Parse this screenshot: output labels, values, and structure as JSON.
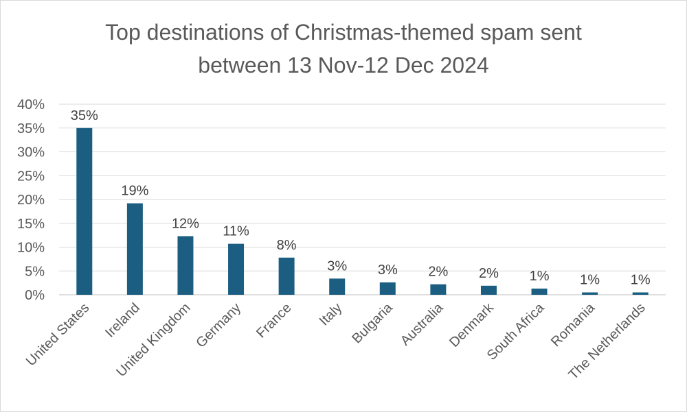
{
  "chart_data": {
    "type": "bar",
    "title_line1": "Top destinations of Christmas-themed spam sent",
    "title_line2": "between 13 Nov-12 Dec 2024",
    "categories": [
      "United States",
      "Ireland",
      "United Kingdom",
      "Germany",
      "France",
      "Italy",
      "Bulgaria",
      "Australia",
      "Denmark",
      "South Africa",
      "Romania",
      "The Netherlands"
    ],
    "values": [
      35,
      19.2,
      12.3,
      10.7,
      7.8,
      3.4,
      2.6,
      2.2,
      1.9,
      1.3,
      0.5,
      0.5
    ],
    "data_labels": [
      "35%",
      "19%",
      "12%",
      "11%",
      "8%",
      "3%",
      "3%",
      "2%",
      "2%",
      "1%",
      "1%",
      "1%"
    ],
    "y_ticks": [
      "0%",
      "5%",
      "10%",
      "15%",
      "20%",
      "25%",
      "30%",
      "35%",
      "40%"
    ],
    "ylim": [
      0,
      40
    ],
    "bar_color": "#1b5e82",
    "grid": true,
    "legend": false
  }
}
